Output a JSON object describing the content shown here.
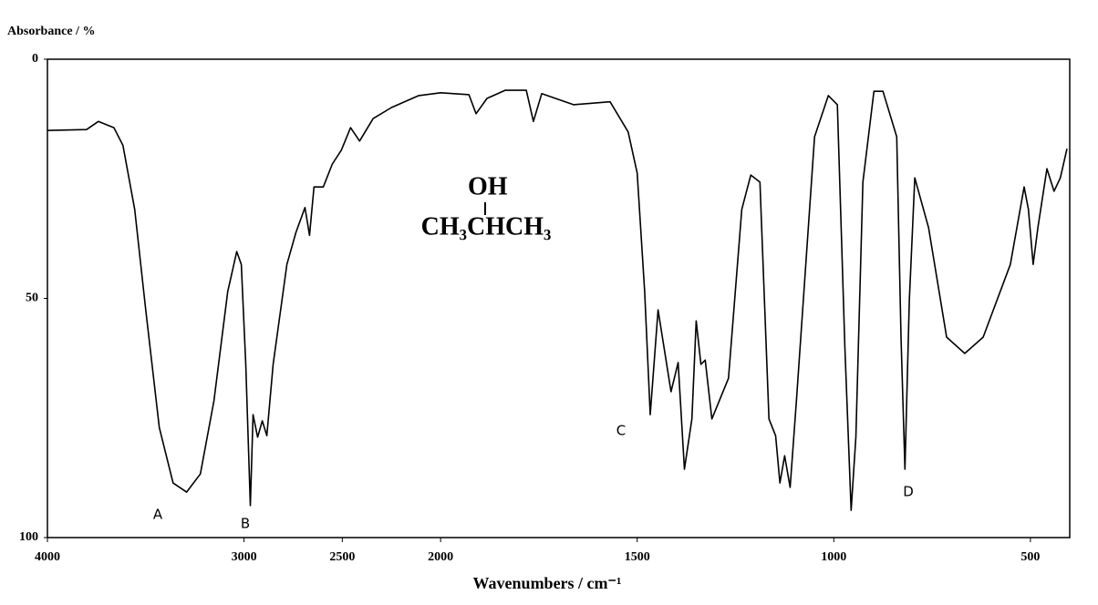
{
  "chart_data": {
    "type": "line",
    "y_label": "Absorbance / %",
    "x_label": "Wavenumbers / cm⁻¹",
    "color": "#000000",
    "xlim": [
      4000,
      400
    ],
    "x_expanded_below": 2000,
    "x_expansion": 2,
    "xticks": [
      4000,
      3000,
      2500,
      2000,
      1500,
      1000,
      500
    ],
    "ylim": [
      0,
      100
    ],
    "y_reversed": true,
    "yticks": [
      0,
      50,
      100
    ],
    "structure": [
      "OH",
      "CH₃CHCH₃"
    ],
    "annotations": [
      "A",
      "B",
      "C",
      "D"
    ],
    "x": [
      4000,
      3801,
      3741,
      3662,
      3616,
      3556,
      3500,
      3431,
      3361,
      3292,
      3222,
      3153,
      3083,
      3037,
      3014,
      2991,
      2968,
      2954,
      2931,
      2907,
      2884,
      2852,
      2782,
      2736,
      2690,
      2667,
      2644,
      2597,
      2551,
      2505,
      2458,
      2412,
      2343,
      2250,
      2111,
      2000,
      1928,
      1910,
      1882,
      1836,
      1782,
      1764,
      1743,
      1662,
      1569,
      1523,
      1500,
      1481,
      1467,
      1447,
      1414,
      1396,
      1380,
      1361,
      1350,
      1338,
      1327,
      1310,
      1268,
      1234,
      1211,
      1188,
      1165,
      1148,
      1137,
      1125,
      1111,
      1095,
      1049,
      1014,
      991,
      972,
      956,
      944,
      926,
      898,
      875,
      840,
      829,
      819,
      808,
      794,
      759,
      713,
      667,
      620,
      551,
      516,
      505,
      493,
      481,
      458,
      440,
      424,
      407
    ],
    "values": [
      14.9,
      14.7,
      13,
      14.3,
      18,
      31.4,
      52.4,
      77,
      88.6,
      90.5,
      86.7,
      71.4,
      48.6,
      40.2,
      42.9,
      63.8,
      93.3,
      74.3,
      79,
      75.6,
      78.7,
      63.8,
      42.9,
      36.2,
      31,
      36.8,
      26.7,
      26.7,
      21.9,
      19,
      14.3,
      17.1,
      12.4,
      10.1,
      7.6,
      7,
      7.4,
      11.4,
      8.2,
      6.5,
      6.5,
      13,
      7.2,
      9.5,
      8.9,
      15.2,
      23.8,
      48.6,
      74.3,
      52.4,
      69.5,
      63.4,
      85.7,
      75.2,
      54.7,
      63.8,
      62.9,
      75.2,
      66.7,
      31.4,
      24.2,
      25.7,
      75.2,
      78.7,
      88.6,
      82.9,
      89.5,
      71.4,
      16.2,
      7.6,
      9.5,
      60,
      94.3,
      79,
      25.7,
      6.7,
      6.7,
      16.2,
      58.1,
      85.7,
      50.5,
      24.8,
      35.2,
      58.1,
      61.5,
      58.1,
      42.9,
      26.7,
      31.4,
      42.9,
      35.2,
      22.9,
      27.6,
      24.8,
      18.7
    ]
  }
}
